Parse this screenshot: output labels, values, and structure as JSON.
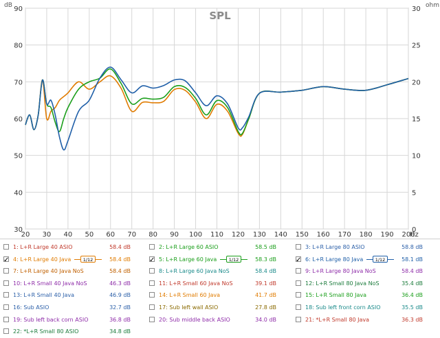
{
  "chart_data": {
    "type": "line",
    "title": "SPL",
    "ylabel": "dB",
    "y2label": "ohm",
    "xunit": "Hz",
    "xlim": [
      20,
      200
    ],
    "ylim": [
      30,
      90
    ],
    "y2lim": [
      0,
      30
    ],
    "xticks": [
      "20",
      "30",
      "40",
      "50",
      "60",
      "70",
      "80",
      "90",
      "100",
      "110",
      "120",
      "130",
      "140",
      "150",
      "160",
      "170",
      "180",
      "190",
      "200"
    ],
    "yticks": [
      "30",
      "40",
      "50",
      "60",
      "70",
      "80",
      "90"
    ],
    "y2ticks": [
      "0",
      "5",
      "10",
      "15",
      "20",
      "25",
      "30"
    ],
    "grid": true,
    "series": [
      {
        "name": "4: L+R Large 40 Java",
        "color": "#e07b00",
        "x": [
          20,
          22,
          24,
          26,
          28,
          30,
          32,
          34,
          36,
          38,
          40,
          45,
          50,
          55,
          60,
          65,
          70,
          75,
          80,
          85,
          90,
          95,
          100,
          105,
          110,
          115,
          120,
          122,
          125,
          130,
          140,
          150,
          160,
          170,
          180,
          190,
          200
        ],
        "y": [
          58.3,
          61,
          57,
          61,
          70.5,
          60,
          62,
          63,
          65,
          66,
          67,
          70,
          68,
          70,
          71.6,
          68.2,
          62,
          64.4,
          64.3,
          64.7,
          67.9,
          67.7,
          64.5,
          60,
          63.9,
          62,
          56,
          55.7,
          60,
          66.9,
          67.2,
          67.7,
          68.7,
          68,
          67.7,
          69.2,
          70.9
        ]
      },
      {
        "name": "5: L+R Large 60 Java",
        "color": "#1a9e1a",
        "x": [
          20,
          22,
          24,
          26,
          28,
          30,
          32,
          34,
          36,
          38,
          40,
          45,
          50,
          55,
          60,
          65,
          70,
          75,
          80,
          85,
          90,
          95,
          100,
          105,
          110,
          115,
          120,
          122,
          125,
          130,
          140,
          150,
          160,
          170,
          180,
          190,
          200
        ],
        "y": [
          58.3,
          61,
          57,
          61,
          70.5,
          64,
          63,
          59,
          56.5,
          60,
          63,
          68,
          70,
          71,
          73.5,
          69.5,
          64,
          65.5,
          65.3,
          65.8,
          68.7,
          68.5,
          65.5,
          61,
          64.9,
          63,
          56.5,
          56,
          60,
          66.9,
          67.2,
          67.7,
          68.7,
          68,
          67.7,
          69.2,
          70.9
        ]
      },
      {
        "name": "6: L+R Large 80 Java",
        "color": "#1f5fa8",
        "x": [
          20,
          22,
          24,
          26,
          28,
          30,
          32,
          34,
          36,
          38,
          40,
          45,
          50,
          55,
          60,
          65,
          70,
          75,
          80,
          85,
          90,
          95,
          100,
          105,
          110,
          115,
          120,
          122,
          125,
          130,
          140,
          150,
          160,
          170,
          180,
          190,
          200
        ],
        "y": [
          58.3,
          61,
          57,
          61,
          70.5,
          64,
          65,
          61,
          55,
          51.5,
          54,
          62,
          65,
          71,
          74,
          70.5,
          67,
          68.9,
          68.3,
          69,
          70.5,
          70.3,
          67,
          63.5,
          66.2,
          64,
          57.5,
          57.5,
          60.5,
          66.9,
          67.2,
          67.7,
          68.7,
          68,
          67.7,
          69.2,
          70.9
        ]
      }
    ]
  },
  "legend": {
    "rows": [
      [
        {
          "label": "1: L+R Large 40 ASIO",
          "value": "58.4 dB",
          "checked": false,
          "color": "#c0392b"
        },
        {
          "label": "2: L+R Large 60 ASIO",
          "value": "58.5 dB",
          "checked": false,
          "color": "#1a9e1a"
        },
        {
          "label": "3: L+R Large 80 ASIO",
          "value": "58.8 dB",
          "checked": false,
          "color": "#2b5fa8"
        }
      ],
      [
        {
          "label": "4: L+R Large 40 Java",
          "value": "58.4 dB",
          "checked": true,
          "color": "#e07b00",
          "smoothing": "1/12"
        },
        {
          "label": "5: L+R Large 60 Java",
          "value": "58.3 dB",
          "checked": true,
          "color": "#1a9e1a",
          "smoothing": "1/12"
        },
        {
          "label": "6: L+R Large 80 Java",
          "value": "58.1 dB",
          "checked": true,
          "color": "#1f5fa8",
          "smoothing": "1/12"
        }
      ],
      [
        {
          "label": "7: L+R Large 40 Java NoS",
          "value": "58.4 dB",
          "checked": false,
          "color": "#c06000"
        },
        {
          "label": "8: L+R Large 60 Java NoS",
          "value": "58.4 dB",
          "checked": false,
          "color": "#1a8a8a"
        },
        {
          "label": "9: L+R Large 80 Java NoS",
          "value": "58.4 dB",
          "checked": false,
          "color": "#8e2ca8"
        }
      ],
      [
        {
          "label": "10: L+R Small 40 Java NoS",
          "value": "46.3 dB",
          "checked": false,
          "color": "#8e2ca8"
        },
        {
          "label": "11: L+R Small 60 Java NoS",
          "value": "39.1 dB",
          "checked": false,
          "color": "#c0392b"
        },
        {
          "label": "12: L+R Small 80 Java NoS",
          "value": "35.4 dB",
          "checked": false,
          "color": "#1a7a3a"
        }
      ],
      [
        {
          "label": "13: L+R Small 40 Java",
          "value": "46.9 dB",
          "checked": false,
          "color": "#2b5fa8"
        },
        {
          "label": "14: L+R Small 60 Java",
          "value": "41.7 dB",
          "checked": false,
          "color": "#e07b00"
        },
        {
          "label": "15: L+R Small 80 Java",
          "value": "36.4 dB",
          "checked": false,
          "color": "#1a9e1a"
        }
      ],
      [
        {
          "label": "16: Sub ASIO",
          "value": "32.7 dB",
          "checked": false,
          "color": "#2b5fa8"
        },
        {
          "label": "17: Sub left wall ASIO",
          "value": "27.8 dB",
          "checked": false,
          "color": "#8a6a00"
        },
        {
          "label": "18: Sub left front corn ASIO",
          "value": "35.5 dB",
          "checked": false,
          "color": "#1a8a8a"
        }
      ],
      [
        {
          "label": "19: Sub left back corn ASIO",
          "value": "36.8 dB",
          "checked": false,
          "color": "#8e2ca8"
        },
        {
          "label": "20: Sub middle back ASIO",
          "value": "34.0 dB",
          "checked": false,
          "color": "#8e2ca8"
        },
        {
          "label": "21: *L+R Small 80 Java",
          "value": "36.3 dB",
          "checked": false,
          "color": "#c0392b"
        }
      ],
      [
        {
          "label": "22: *L+R Small 80 ASIO",
          "value": "34.8 dB",
          "checked": false,
          "color": "#1a7a3a"
        }
      ]
    ]
  }
}
